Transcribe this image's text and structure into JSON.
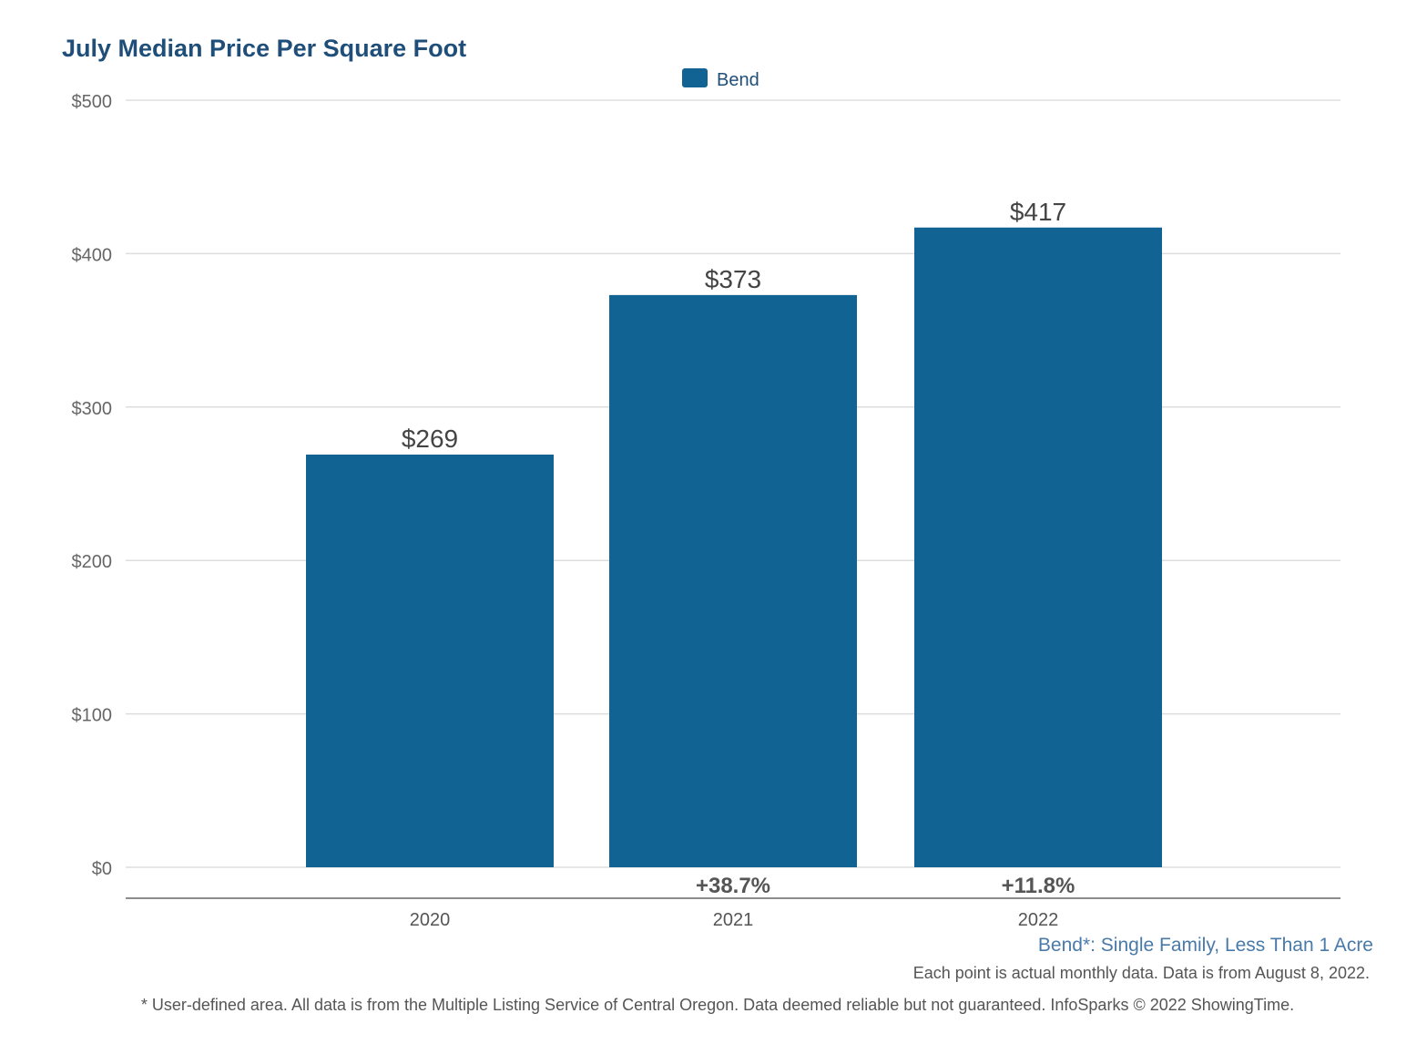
{
  "chart_data": {
    "type": "bar",
    "title": "July Median Price Per Square Foot",
    "categories": [
      "2020",
      "2021",
      "2022"
    ],
    "series": [
      {
        "name": "Bend",
        "values": [
          269,
          373,
          417
        ],
        "color": "#106392"
      }
    ],
    "data_labels": [
      "$269",
      "$373",
      "$417"
    ],
    "change_labels": [
      "",
      "+38.7%",
      "+11.8%"
    ],
    "yticks": [
      {
        "value": 0,
        "label": "$0"
      },
      {
        "value": 100,
        "label": "$100"
      },
      {
        "value": 200,
        "label": "$200"
      },
      {
        "value": 300,
        "label": "$300"
      },
      {
        "value": 400,
        "label": "$400"
      },
      {
        "value": 500,
        "label": "$500"
      }
    ],
    "ylim": [
      0,
      500
    ],
    "grid": true,
    "legend_position": "top-center",
    "xlabel": "",
    "ylabel": ""
  },
  "notes": {
    "area": "Bend*: Single Family, Less Than 1 Acre",
    "data_date": "Each point is actual monthly data. Data is from August 8, 2022.",
    "disclaimer": "* User-defined area. All data is from the Multiple Listing Service of Central Oregon. Data deemed reliable but not guaranteed. InfoSparks © 2022 ShowingTime."
  },
  "colors": {
    "title": "#1f4e79",
    "bar": "#106392",
    "area_note": "#4a7aa8",
    "grid": "#dddddd",
    "axis": "#666666"
  }
}
